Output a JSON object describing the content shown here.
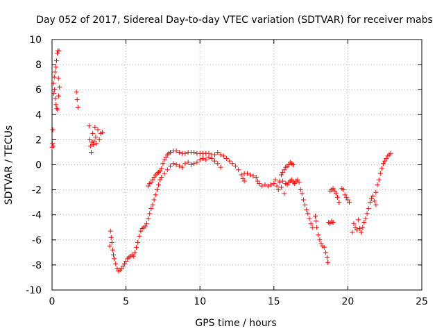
{
  "chart_data": {
    "type": "scatter",
    "title": "Day 052 of 2017, Sidereal Day-to-day VTEC variation (SDTVAR) for receiver mabs",
    "xlabel": "GPS time / hours",
    "ylabel": "SDTVAR / TECUs",
    "xlim": [
      0,
      25
    ],
    "ylim": [
      -10,
      10
    ],
    "xticks": [
      0,
      5,
      10,
      15,
      20,
      25
    ],
    "yticks": [
      -10,
      -8,
      -6,
      -4,
      -2,
      0,
      2,
      4,
      6,
      8,
      10
    ],
    "grid": true,
    "marker": "+",
    "color": "#ff0000",
    "series": [
      {
        "name": "SDTVAR",
        "points": [
          [
            0.0,
            1.4
          ],
          [
            0.03,
            1.7
          ],
          [
            0.05,
            2.8
          ],
          [
            0.07,
            1.5
          ],
          [
            0.1,
            6.5
          ],
          [
            0.12,
            5.7
          ],
          [
            0.15,
            7.0
          ],
          [
            0.17,
            6.0
          ],
          [
            0.2,
            7.4
          ],
          [
            0.22,
            5.3
          ],
          [
            0.25,
            7.8
          ],
          [
            0.27,
            4.8
          ],
          [
            0.3,
            8.3
          ],
          [
            0.32,
            4.5
          ],
          [
            0.35,
            8.9
          ],
          [
            0.37,
            4.4
          ],
          [
            0.4,
            9.1
          ],
          [
            0.43,
            6.9
          ],
          [
            0.45,
            5.5
          ],
          [
            0.47,
            9.1
          ],
          [
            0.5,
            6.2
          ],
          [
            1.65,
            5.8
          ],
          [
            1.7,
            5.2
          ],
          [
            1.75,
            4.6
          ],
          [
            2.5,
            3.1
          ],
          [
            2.55,
            2.0
          ],
          [
            2.6,
            1.5
          ],
          [
            2.65,
            1.0
          ],
          [
            2.7,
            1.8
          ],
          [
            2.75,
            2.5
          ],
          [
            2.8,
            1.6
          ],
          [
            2.85,
            1.9
          ],
          [
            2.9,
            3.0
          ],
          [
            2.95,
            2.2
          ],
          [
            3.0,
            1.7
          ],
          [
            3.1,
            2.8
          ],
          [
            3.2,
            2.0
          ],
          [
            3.3,
            2.5
          ],
          [
            3.4,
            2.6
          ],
          [
            3.9,
            -6.5
          ],
          [
            3.95,
            -5.3
          ],
          [
            4.0,
            -5.8
          ],
          [
            4.05,
            -6.2
          ],
          [
            4.1,
            -6.8
          ],
          [
            4.15,
            -7.2
          ],
          [
            4.2,
            -7.5
          ],
          [
            4.3,
            -7.9
          ],
          [
            4.4,
            -8.3
          ],
          [
            4.5,
            -8.5
          ],
          [
            4.6,
            -8.4
          ],
          [
            4.7,
            -8.3
          ],
          [
            4.8,
            -8.1
          ],
          [
            4.9,
            -7.9
          ],
          [
            5.0,
            -7.7
          ],
          [
            5.1,
            -7.5
          ],
          [
            5.2,
            -7.4
          ],
          [
            5.3,
            -7.3
          ],
          [
            5.4,
            -7.2
          ],
          [
            5.5,
            -7.3
          ],
          [
            5.6,
            -7.0
          ],
          [
            5.7,
            -6.6
          ],
          [
            5.8,
            -6.2
          ],
          [
            5.9,
            -5.7
          ],
          [
            6.0,
            -5.3
          ],
          [
            6.1,
            -5.1
          ],
          [
            6.2,
            -5.0
          ],
          [
            6.3,
            -4.9
          ],
          [
            6.4,
            -4.7
          ],
          [
            6.5,
            -4.3
          ],
          [
            6.6,
            -3.9
          ],
          [
            6.7,
            -3.5
          ],
          [
            6.8,
            -3.2
          ],
          [
            6.9,
            -2.8
          ],
          [
            7.0,
            -2.4
          ],
          [
            7.1,
            -2.0
          ],
          [
            7.2,
            -1.6
          ],
          [
            7.3,
            -1.2
          ],
          [
            6.5,
            -1.7
          ],
          [
            6.6,
            -1.5
          ],
          [
            6.7,
            -1.4
          ],
          [
            6.8,
            -1.2
          ],
          [
            6.9,
            -1.0
          ],
          [
            7.0,
            -0.8
          ],
          [
            7.1,
            -0.7
          ],
          [
            7.2,
            -0.6
          ],
          [
            7.3,
            -0.5
          ],
          [
            7.4,
            -0.3
          ],
          [
            7.5,
            0.1
          ],
          [
            7.6,
            0.4
          ],
          [
            7.7,
            0.6
          ],
          [
            7.8,
            0.8
          ],
          [
            7.9,
            0.9
          ],
          [
            8.0,
            1.0
          ],
          [
            8.2,
            1.1
          ],
          [
            8.4,
            1.1
          ],
          [
            8.6,
            1.0
          ],
          [
            8.8,
            0.9
          ],
          [
            9.0,
            0.9
          ],
          [
            9.2,
            1.0
          ],
          [
            9.4,
            1.0
          ],
          [
            9.6,
            1.0
          ],
          [
            9.8,
            0.9
          ],
          [
            10.0,
            0.9
          ],
          [
            10.2,
            0.9
          ],
          [
            10.4,
            0.9
          ],
          [
            10.6,
            0.9
          ],
          [
            10.8,
            0.8
          ],
          [
            11.0,
            0.8
          ],
          [
            11.2,
            1.0
          ],
          [
            11.4,
            0.8
          ],
          [
            11.6,
            0.7
          ],
          [
            11.8,
            0.5
          ],
          [
            12.0,
            0.3
          ],
          [
            12.2,
            0.1
          ],
          [
            12.4,
            -0.1
          ],
          [
            12.6,
            -0.4
          ],
          [
            12.8,
            -0.8
          ],
          [
            12.9,
            -1.1
          ],
          [
            13.0,
            -1.3
          ],
          [
            7.4,
            -1.0
          ],
          [
            7.6,
            -0.7
          ],
          [
            7.8,
            -0.4
          ],
          [
            8.0,
            -0.1
          ],
          [
            8.2,
            0.1
          ],
          [
            8.4,
            0.0
          ],
          [
            8.6,
            -0.1
          ],
          [
            8.8,
            -0.2
          ],
          [
            9.0,
            0.1
          ],
          [
            9.2,
            0.2
          ],
          [
            9.4,
            0.0
          ],
          [
            9.6,
            0.1
          ],
          [
            9.8,
            0.2
          ],
          [
            10.0,
            0.4
          ],
          [
            10.2,
            0.5
          ],
          [
            10.4,
            0.4
          ],
          [
            10.6,
            0.6
          ],
          [
            10.8,
            0.5
          ],
          [
            11.0,
            0.3
          ],
          [
            11.2,
            0.1
          ],
          [
            11.4,
            -0.2
          ],
          [
            13.0,
            -0.7
          ],
          [
            13.2,
            -0.7
          ],
          [
            13.4,
            -0.8
          ],
          [
            13.6,
            -0.9
          ],
          [
            13.8,
            -1.0
          ],
          [
            13.9,
            -1.3
          ],
          [
            14.0,
            -1.5
          ],
          [
            14.2,
            -1.7
          ],
          [
            14.4,
            -1.6
          ],
          [
            14.6,
            -1.7
          ],
          [
            14.8,
            -1.6
          ],
          [
            15.0,
            -1.5
          ],
          [
            15.1,
            -1.2
          ],
          [
            15.2,
            -1.7
          ],
          [
            15.3,
            -2.0
          ],
          [
            15.4,
            -1.4
          ],
          [
            15.5,
            -1.8
          ],
          [
            15.6,
            -1.3
          ],
          [
            15.7,
            -2.3
          ],
          [
            15.8,
            -1.5
          ],
          [
            15.4,
            -1.3
          ],
          [
            15.5,
            -0.8
          ],
          [
            15.6,
            -0.6
          ],
          [
            15.7,
            -0.4
          ],
          [
            15.8,
            -0.2
          ],
          [
            15.9,
            -0.1
          ],
          [
            16.0,
            0.0
          ],
          [
            16.1,
            0.2
          ],
          [
            16.2,
            0.1
          ],
          [
            16.3,
            0.0
          ],
          [
            15.9,
            -1.6
          ],
          [
            16.0,
            -1.4
          ],
          [
            16.1,
            -1.3
          ],
          [
            16.2,
            -1.2
          ],
          [
            16.3,
            -1.4
          ],
          [
            16.4,
            -1.5
          ],
          [
            16.5,
            -1.3
          ],
          [
            16.6,
            -1.2
          ],
          [
            16.7,
            -1.4
          ],
          [
            16.8,
            -2.0
          ],
          [
            16.9,
            -2.3
          ],
          [
            17.0,
            -2.8
          ],
          [
            17.1,
            -3.2
          ],
          [
            17.2,
            -3.6
          ],
          [
            17.3,
            -3.9
          ],
          [
            17.4,
            -4.3
          ],
          [
            17.5,
            -4.7
          ],
          [
            17.6,
            -5.0
          ],
          [
            17.8,
            -4.1
          ],
          [
            17.85,
            -4.5
          ],
          [
            17.9,
            -5.0
          ],
          [
            18.0,
            -5.6
          ],
          [
            18.1,
            -6.0
          ],
          [
            18.2,
            -6.3
          ],
          [
            18.3,
            -6.5
          ],
          [
            18.4,
            -6.6
          ],
          [
            18.5,
            -7.0
          ],
          [
            18.6,
            -7.4
          ],
          [
            18.65,
            -7.8
          ],
          [
            18.7,
            -4.6
          ],
          [
            18.8,
            -4.7
          ],
          [
            18.9,
            -4.5
          ],
          [
            19.0,
            -4.6
          ],
          [
            18.8,
            -2.1
          ],
          [
            18.9,
            -2.0
          ],
          [
            19.0,
            -1.9
          ],
          [
            19.1,
            -2.1
          ],
          [
            19.2,
            -2.3
          ],
          [
            19.3,
            -2.6
          ],
          [
            19.4,
            -3.0
          ],
          [
            19.6,
            -1.9
          ],
          [
            19.7,
            -2.0
          ],
          [
            19.8,
            -2.4
          ],
          [
            19.9,
            -2.6
          ],
          [
            20.0,
            -2.8
          ],
          [
            20.1,
            -3.0
          ],
          [
            20.3,
            -5.4
          ],
          [
            20.4,
            -4.7
          ],
          [
            20.5,
            -5.0
          ],
          [
            20.6,
            -5.2
          ],
          [
            20.7,
            -4.4
          ],
          [
            20.8,
            -5.1
          ],
          [
            20.9,
            -5.4
          ],
          [
            21.0,
            -5.0
          ],
          [
            21.1,
            -4.6
          ],
          [
            21.2,
            -4.3
          ],
          [
            21.3,
            -3.9
          ],
          [
            21.4,
            -3.5
          ],
          [
            21.5,
            -3.0
          ],
          [
            21.6,
            -2.7
          ],
          [
            21.7,
            -2.5
          ],
          [
            21.8,
            -2.9
          ],
          [
            21.9,
            -3.2
          ],
          [
            21.9,
            -2.2
          ],
          [
            22.0,
            -1.6
          ],
          [
            22.1,
            -1.2
          ],
          [
            22.2,
            -0.7
          ],
          [
            22.3,
            -0.3
          ],
          [
            22.4,
            0.1
          ],
          [
            22.5,
            0.3
          ],
          [
            22.6,
            0.5
          ],
          [
            22.7,
            0.7
          ],
          [
            22.8,
            0.8
          ],
          [
            22.9,
            0.9
          ]
        ]
      }
    ]
  }
}
